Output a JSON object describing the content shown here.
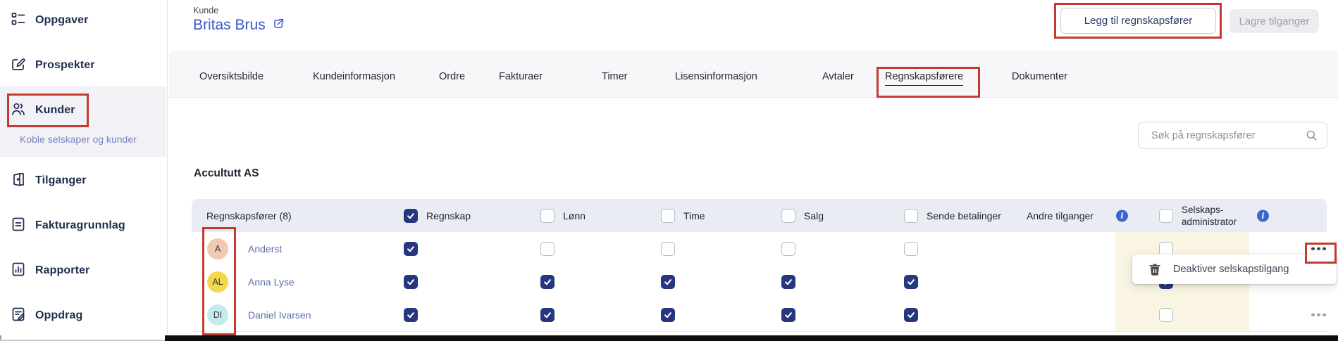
{
  "sidebar": {
    "items": [
      {
        "label": "Oppgaver",
        "icon": "tasks-icon"
      },
      {
        "label": "Prospekter",
        "icon": "prospects-icon"
      },
      {
        "label": "Kunder",
        "icon": "customers-icon"
      },
      {
        "label": "Tilganger",
        "icon": "access-icon"
      },
      {
        "label": "Fakturagrunnlag",
        "icon": "invoice-icon"
      },
      {
        "label": "Rapporter",
        "icon": "reports-icon"
      },
      {
        "label": "Oppdrag",
        "icon": "assignments-icon"
      }
    ],
    "active_item": "Kunder",
    "sub_item": "Koble selskaper og kunder"
  },
  "header": {
    "eyebrow": "Kunde",
    "title": "Britas Brus",
    "buttons": {
      "add": "Legg til regnskapsfører",
      "save": "Lagre tilganger"
    }
  },
  "tabs": {
    "items": [
      "Oversiktsbilde",
      "Kundeinformasjon",
      "Ordre",
      "Fakturaer",
      "Timer",
      "Lisensinformasjon",
      "Avtaler",
      "Regnskapsførere",
      "Dokumenter"
    ],
    "active": "Regnskapsførere"
  },
  "search": {
    "placeholder": "Søk på regnskapsfører"
  },
  "company_section": {
    "name": "Accultutt AS"
  },
  "table": {
    "name_column_header": "Regnskapsfører (8)",
    "access_columns": [
      {
        "label": "Regnskap",
        "header_checked": true
      },
      {
        "label": "Lønn",
        "header_checked": false
      },
      {
        "label": "Time",
        "header_checked": false
      },
      {
        "label": "Salg",
        "header_checked": false
      },
      {
        "label": "Sende betalinger",
        "header_checked": false
      }
    ],
    "other_access_header": "Andre tilganger",
    "admin_header": {
      "line1": "Selskaps-",
      "line2": "administrator",
      "header_checked": false
    },
    "rows": [
      {
        "initials": "A",
        "name": "Anderst",
        "avatar_color": "#f0c9b0",
        "access": [
          true,
          false,
          false,
          false,
          false
        ],
        "admin_checked": false,
        "has_menu": true
      },
      {
        "initials": "AL",
        "name": "Anna Lyse",
        "avatar_color": "#f4d84b",
        "access": [
          true,
          true,
          true,
          true,
          true
        ],
        "admin_checked": true,
        "has_menu": false
      },
      {
        "initials": "DI",
        "name": "Daniel Ivarsen",
        "avatar_color": "#c3ebee",
        "access": [
          true,
          true,
          true,
          true,
          true
        ],
        "admin_checked": false,
        "has_menu": true
      }
    ]
  },
  "context_menu": {
    "items": [
      {
        "label": "Deaktiver selskapstilgang",
        "icon": "trash-icon"
      }
    ]
  },
  "colors": {
    "accent_blue": "#3a57c9",
    "checkbox_blue": "#263780",
    "annotation_red": "#c23b31",
    "admin_column_bg": "#faf5e3",
    "info_blue": "#3a66d1",
    "header_row_bg": "#e9edf3"
  }
}
